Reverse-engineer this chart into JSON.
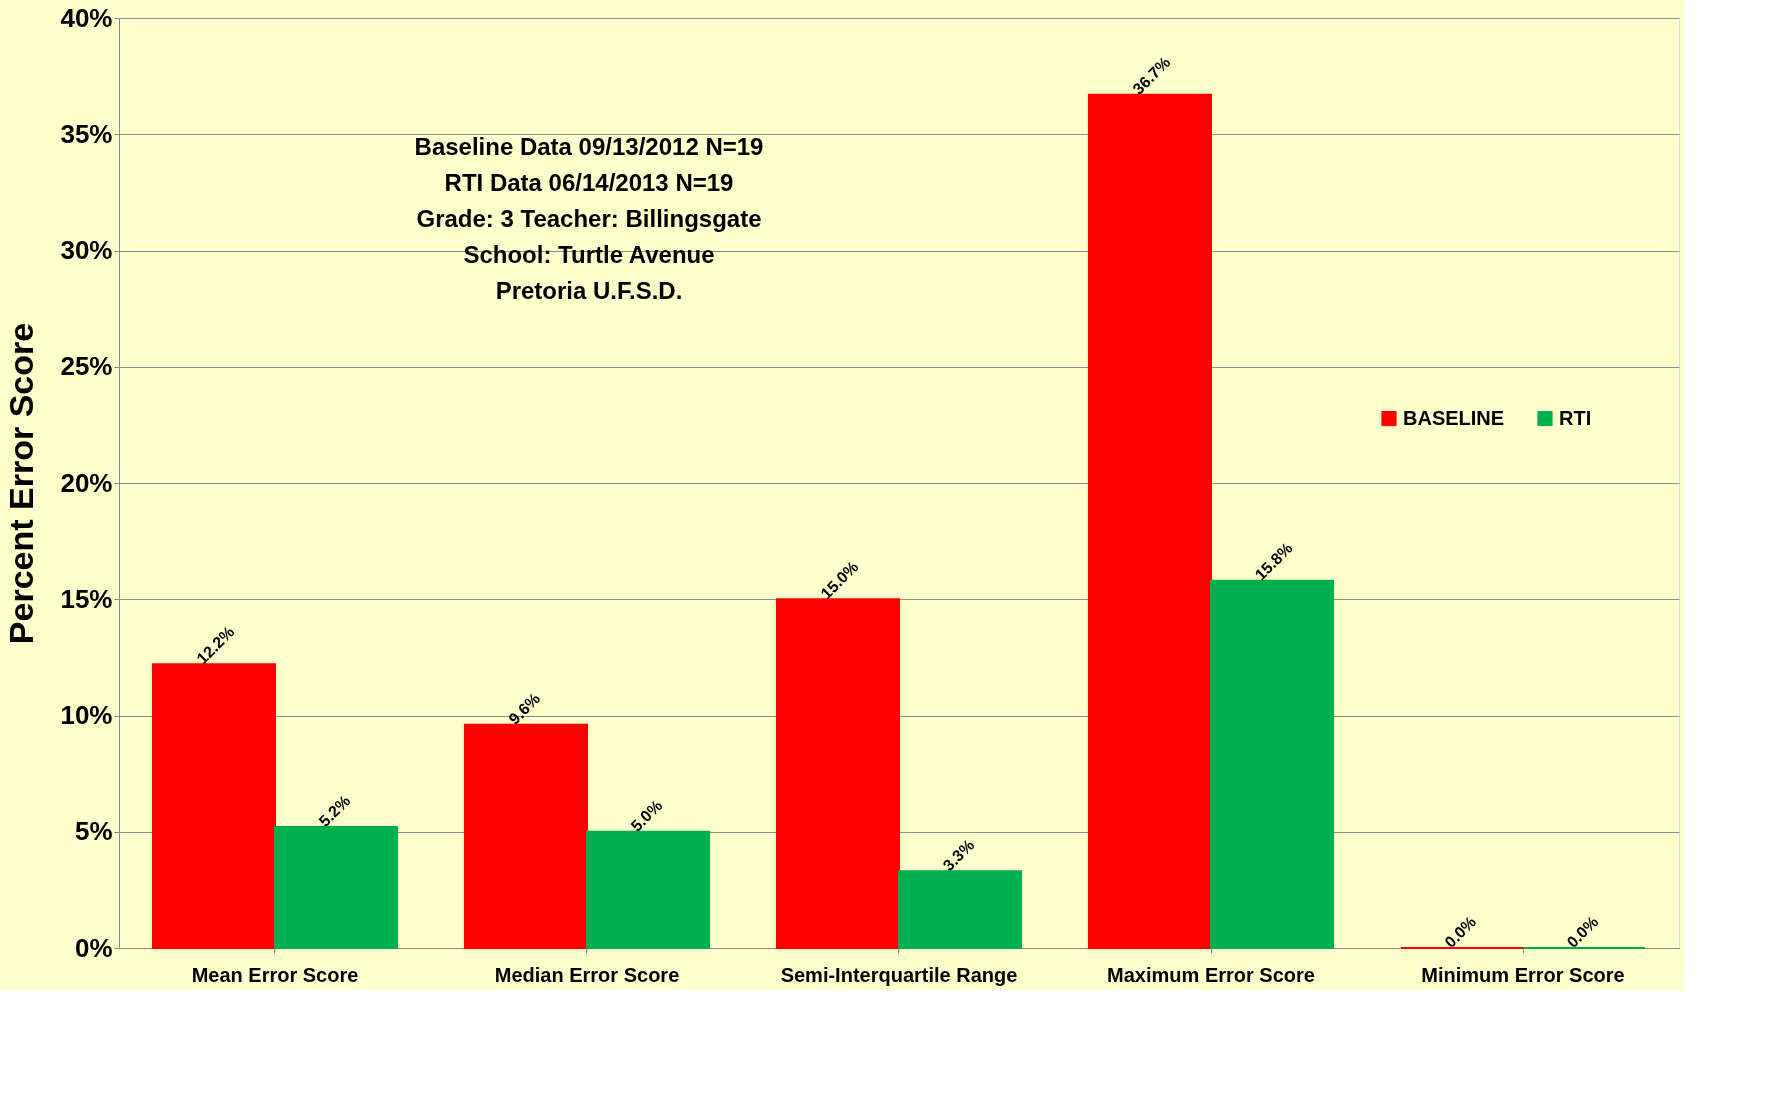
{
  "chart_data": {
    "type": "bar",
    "ylabel": "Percent Error Score",
    "categories": [
      "Mean Error Score",
      "Median Error Score",
      "Semi-Interquartile Range",
      "Maximum Error Score",
      "Minimum Error Score"
    ],
    "series": [
      {
        "name": "BASELINE",
        "color": "#ff0000",
        "values": [
          12.2,
          9.6,
          15.0,
          36.7,
          0.0
        ],
        "value_labels": [
          "12.2%",
          "9.6%",
          "15.0%",
          "36.7%",
          "0.0%"
        ]
      },
      {
        "name": "RTI",
        "color": "#00b050",
        "values": [
          5.2,
          5.0,
          3.3,
          15.8,
          0.0
        ],
        "value_labels": [
          "5.2%",
          "5.0%",
          "3.3%",
          "15.8%",
          "0.0%"
        ]
      }
    ],
    "ylim": [
      0,
      40
    ],
    "yticks": [
      {
        "value": 0,
        "label": "0%"
      },
      {
        "value": 5,
        "label": "5%"
      },
      {
        "value": 10,
        "label": "10%"
      },
      {
        "value": 15,
        "label": "15%"
      },
      {
        "value": 20,
        "label": "20%"
      },
      {
        "value": 25,
        "label": "25%"
      },
      {
        "value": 30,
        "label": "30%"
      },
      {
        "value": 35,
        "label": "35%"
      },
      {
        "value": 40,
        "label": "40%"
      }
    ],
    "grid": "y",
    "legend": "right",
    "annotations": [
      "Baseline Data  09/13/2012    N=19",
      "RTI Data        06/14/2013    N=19",
      "Grade: 3       Teacher:  Billingsgate",
      "School:  Turtle Avenue",
      "Pretoria U.F.S.D."
    ]
  }
}
